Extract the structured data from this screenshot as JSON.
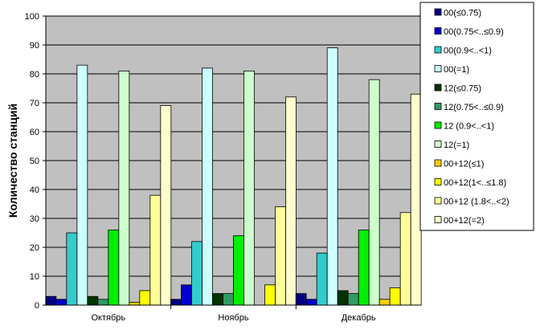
{
  "chart_data": {
    "type": "bar",
    "title": "",
    "xlabel": "",
    "ylabel": "Количество станций",
    "ylim": [
      0,
      100
    ],
    "yticks": [
      0,
      10,
      20,
      30,
      40,
      50,
      60,
      70,
      80,
      90,
      100
    ],
    "grid": true,
    "plot_background": "#c0c0c0",
    "legend_position": "right",
    "categories": [
      "Октябрь",
      "Ноябрь",
      "Декабрь"
    ],
    "series": [
      {
        "name": "00(≤0.75)",
        "color": "#000080",
        "values": [
          3,
          2,
          4
        ]
      },
      {
        "name": "00(0.75<..≤0.9)",
        "color": "#0000cc",
        "values": [
          2,
          7,
          2
        ]
      },
      {
        "name": "00(0.9<..<1)",
        "color": "#33cccc",
        "values": [
          25,
          22,
          18
        ]
      },
      {
        "name": "00(=1)",
        "color": "#ccffff",
        "values": [
          83,
          82,
          89
        ]
      },
      {
        "name": "12(≤0.75)",
        "color": "#003300",
        "values": [
          3,
          4,
          5
        ]
      },
      {
        "name": "12(0.75<..≤0.9)",
        "color": "#339966",
        "values": [
          2,
          4,
          4
        ]
      },
      {
        "name": "12 (0.9<..<1)",
        "color": "#00ee00",
        "values": [
          26,
          24,
          26
        ]
      },
      {
        "name": "12(=1)",
        "color": "#ccffcc",
        "values": [
          81,
          81,
          78
        ]
      },
      {
        "name": "00+12(≤1)",
        "color": "#ffcc00",
        "values": [
          1,
          0,
          2
        ]
      },
      {
        "name": "00+12(1<..≤1.8)",
        "color": "#ffff00",
        "values": [
          5,
          7,
          6
        ]
      },
      {
        "name": "00+12 (1.8<..<2)",
        "color": "#ffff99",
        "values": [
          38,
          34,
          32
        ]
      },
      {
        "name": "00+12(=2)",
        "color": "#ffffcc",
        "values": [
          69,
          72,
          73
        ]
      }
    ]
  }
}
